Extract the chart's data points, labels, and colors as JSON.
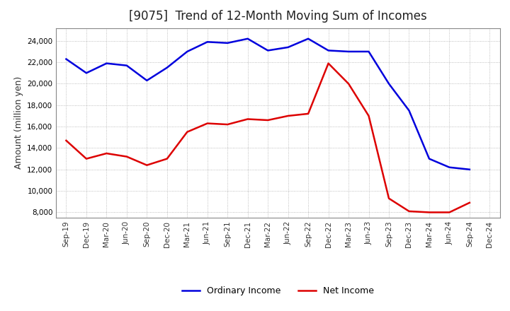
{
  "title": "[9075]  Trend of 12-Month Moving Sum of Incomes",
  "ylabel": "Amount (million yen)",
  "background_color": "#ffffff",
  "plot_bg_color": "#ffffff",
  "grid_color": "#888888",
  "x_labels": [
    "Sep-19",
    "Dec-19",
    "Mar-20",
    "Jun-20",
    "Sep-20",
    "Dec-20",
    "Mar-21",
    "Jun-21",
    "Sep-21",
    "Dec-21",
    "Mar-22",
    "Jun-22",
    "Sep-22",
    "Dec-22",
    "Mar-23",
    "Jun-23",
    "Sep-23",
    "Dec-23",
    "Mar-24",
    "Jun-24",
    "Sep-24",
    "Dec-24"
  ],
  "ordinary_income": [
    22300,
    21000,
    21900,
    21700,
    20300,
    21500,
    23000,
    23900,
    23800,
    24200,
    23100,
    23400,
    24200,
    23100,
    23000,
    23000,
    20000,
    17500,
    13000,
    12200,
    12000,
    null
  ],
  "net_income": [
    14700,
    13000,
    13500,
    13200,
    12400,
    13000,
    15500,
    16300,
    16200,
    16700,
    16600,
    17000,
    17200,
    21900,
    20000,
    17000,
    9300,
    8100,
    8000,
    8000,
    8900,
    null
  ],
  "ordinary_color": "#0000dd",
  "net_color": "#dd0000",
  "ylim": [
    7500,
    25200
  ],
  "yticks": [
    8000,
    10000,
    12000,
    14000,
    16000,
    18000,
    20000,
    22000,
    24000
  ],
  "line_width": 1.8,
  "title_fontsize": 12,
  "tick_fontsize": 7.5,
  "ylabel_fontsize": 9,
  "legend_fontsize": 9
}
